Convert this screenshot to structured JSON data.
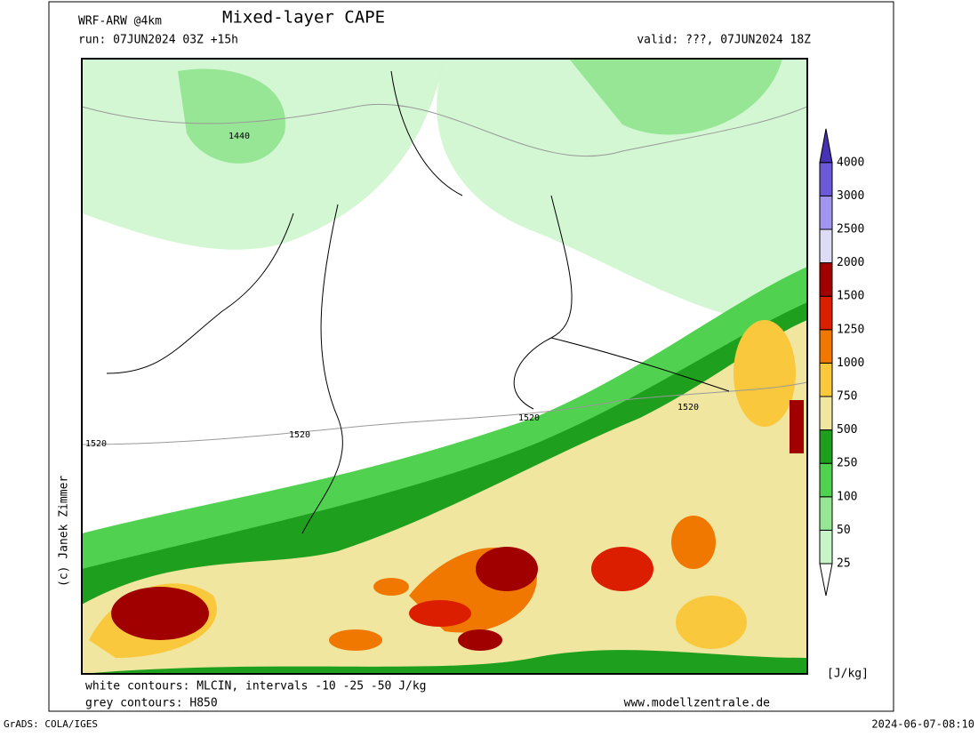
{
  "header": {
    "model": "WRF-ARW @4km",
    "title": "Mixed-layer CAPE",
    "run": "run: 07JUN2024 03Z +15h",
    "valid": "valid: ???, 07JUN2024 18Z"
  },
  "map": {
    "contour_labels": [
      "1440",
      "1520",
      "1520",
      "1520",
      "1520"
    ]
  },
  "colorbar": {
    "levels": [
      "25",
      "50",
      "100",
      "250",
      "500",
      "750",
      "1000",
      "1250",
      "1500",
      "2000",
      "2500",
      "3000",
      "4000"
    ],
    "colors": [
      "#ffffff",
      "#c8f5c8",
      "#96e696",
      "#50d250",
      "#1ea01e",
      "#f0e6a0",
      "#fac83c",
      "#f07800",
      "#dc1e00",
      "#a00000",
      "#dcdcf5",
      "#a096f0",
      "#6a5ad8",
      "#4632b4"
    ],
    "unit": "[J/kg]"
  },
  "footer": {
    "note1": "white contours: MLCIN, intervals -10 -25 -50 J/kg",
    "note2": "grey contours: H850",
    "website": "www.modellzentrale.de",
    "copyright": "(c) Janek Zimmer",
    "software": "GrADS: COLA/IGES",
    "timestamp": "2024-06-07-08:10"
  }
}
